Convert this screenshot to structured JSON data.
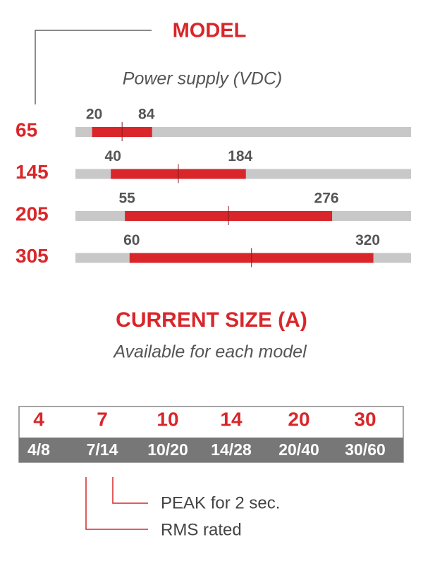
{
  "model": {
    "title": "MODEL",
    "subtitle": "Power supply (VDC)",
    "rows": [
      {
        "label": "65",
        "min": 20,
        "max": 84
      },
      {
        "label": "145",
        "min": 40,
        "max": 184
      },
      {
        "label": "205",
        "min": 55,
        "max": 276
      },
      {
        "label": "305",
        "min": 60,
        "max": 320
      }
    ]
  },
  "current": {
    "title": "CURRENT SIZE (A)",
    "subtitle": "Available for each model",
    "sizes": [
      "4",
      "7",
      "10",
      "14",
      "20",
      "30"
    ],
    "ratings": [
      "4/8",
      "7/14",
      "10/20",
      "14/28",
      "20/40",
      "30/60"
    ]
  },
  "legend": {
    "peak": "PEAK for 2 sec.",
    "rms": "RMS rated"
  }
}
